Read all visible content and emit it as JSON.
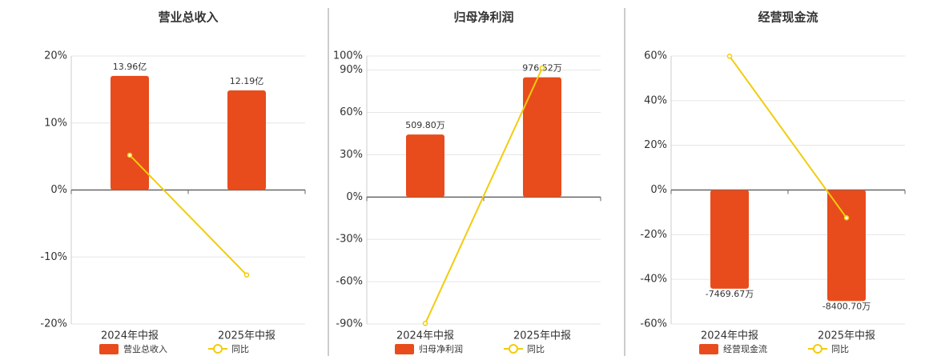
{
  "chart_data": [
    {
      "type": "bar",
      "title": "营业总收入",
      "categories": [
        "2024年中报",
        "2025年中报"
      ],
      "series": [
        {
          "name": "营业总收入",
          "color": "#e84c1c",
          "axis": "y2",
          "values": [
            13.96,
            12.19
          ],
          "value_labels": [
            "13.96亿",
            "12.19亿"
          ]
        },
        {
          "name": "同比",
          "color": "#f2cc0c",
          "type": "line",
          "values": [
            5.2,
            -12.68
          ]
        }
      ],
      "ylim": [
        -20,
        20
      ],
      "yticks": [
        {
          "value": 20,
          "label": "20%"
        },
        {
          "value": 10,
          "label": "10%"
        },
        {
          "value": 0,
          "label": "0%"
        },
        {
          "value": -10,
          "label": "-10%"
        },
        {
          "value": -20,
          "label": "-20%"
        }
      ],
      "y2lim": [
        -16.4,
        16.4
      ],
      "grid": true
    },
    {
      "type": "bar",
      "title": "归母净利润",
      "categories": [
        "2024年中报",
        "2025年中报"
      ],
      "series": [
        {
          "name": "归母净利润",
          "color": "#e84c1c",
          "axis": "y2",
          "values": [
            509.8,
            976.52
          ],
          "value_labels": [
            "509.80万",
            "976.52万"
          ]
        },
        {
          "name": "同比",
          "color": "#f2cc0c",
          "type": "line",
          "values": [
            -89.6,
            91.5
          ]
        }
      ],
      "ylim": [
        -90,
        100
      ],
      "yticks": [
        {
          "value": 100,
          "label": "100%"
        },
        {
          "value": 90,
          "label": "90%"
        },
        {
          "value": 60,
          "label": "60%"
        },
        {
          "value": 30,
          "label": "30%"
        },
        {
          "value": 0,
          "label": "0%"
        },
        {
          "value": -30,
          "label": "-30%"
        },
        {
          "value": -60,
          "label": "-60%"
        },
        {
          "value": -90,
          "label": "-90%"
        }
      ],
      "y2lim": [
        -1035,
        1150
      ],
      "grid": true
    },
    {
      "type": "bar",
      "title": "经营现金流",
      "categories": [
        "2024年中报",
        "2025年中报"
      ],
      "series": [
        {
          "name": "经营现金流",
          "color": "#e84c1c",
          "axis": "y2",
          "values": [
            -7469.67,
            -8400.7
          ],
          "value_labels": [
            "-7469.67万",
            "-8400.70万"
          ]
        },
        {
          "name": "同比",
          "color": "#f2cc0c",
          "type": "line",
          "values": [
            59.9,
            -12.46
          ]
        }
      ],
      "ylim": [
        -60,
        60
      ],
      "yticks": [
        {
          "value": 60,
          "label": "60%"
        },
        {
          "value": 40,
          "label": "40%"
        },
        {
          "value": 20,
          "label": "20%"
        },
        {
          "value": 0,
          "label": "0%"
        },
        {
          "value": -20,
          "label": "-20%"
        },
        {
          "value": -40,
          "label": "-40%"
        },
        {
          "value": -60,
          "label": "-60%"
        }
      ],
      "y2lim": [
        -10140,
        10140
      ],
      "grid": true
    }
  ]
}
